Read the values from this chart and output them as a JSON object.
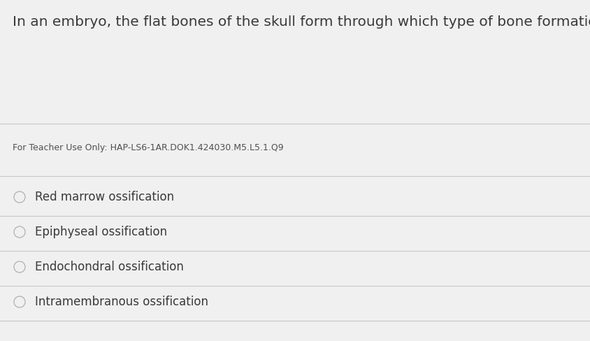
{
  "background_color": "#f0f0f0",
  "question_text": "In an embryo, the flat bones of the skull form through which type of bone formation?",
  "teacher_note": "For Teacher Use Only: HAP-LS6-1AR.DOK1.424030.M5.L5.1.Q9",
  "options": [
    "Red marrow ossification",
    "Epiphyseal ossification",
    "Endochondral ossification",
    "Intramembranous ossification"
  ],
  "question_fontsize": 14.5,
  "teacher_fontsize": 9.0,
  "option_fontsize": 12.0,
  "text_color": "#3a3a3a",
  "teacher_color": "#505050",
  "line_color": "#c8c8c8",
  "circle_color": "#b0b0b0",
  "figsize": [
    8.44,
    4.89
  ],
  "dpi": 100
}
